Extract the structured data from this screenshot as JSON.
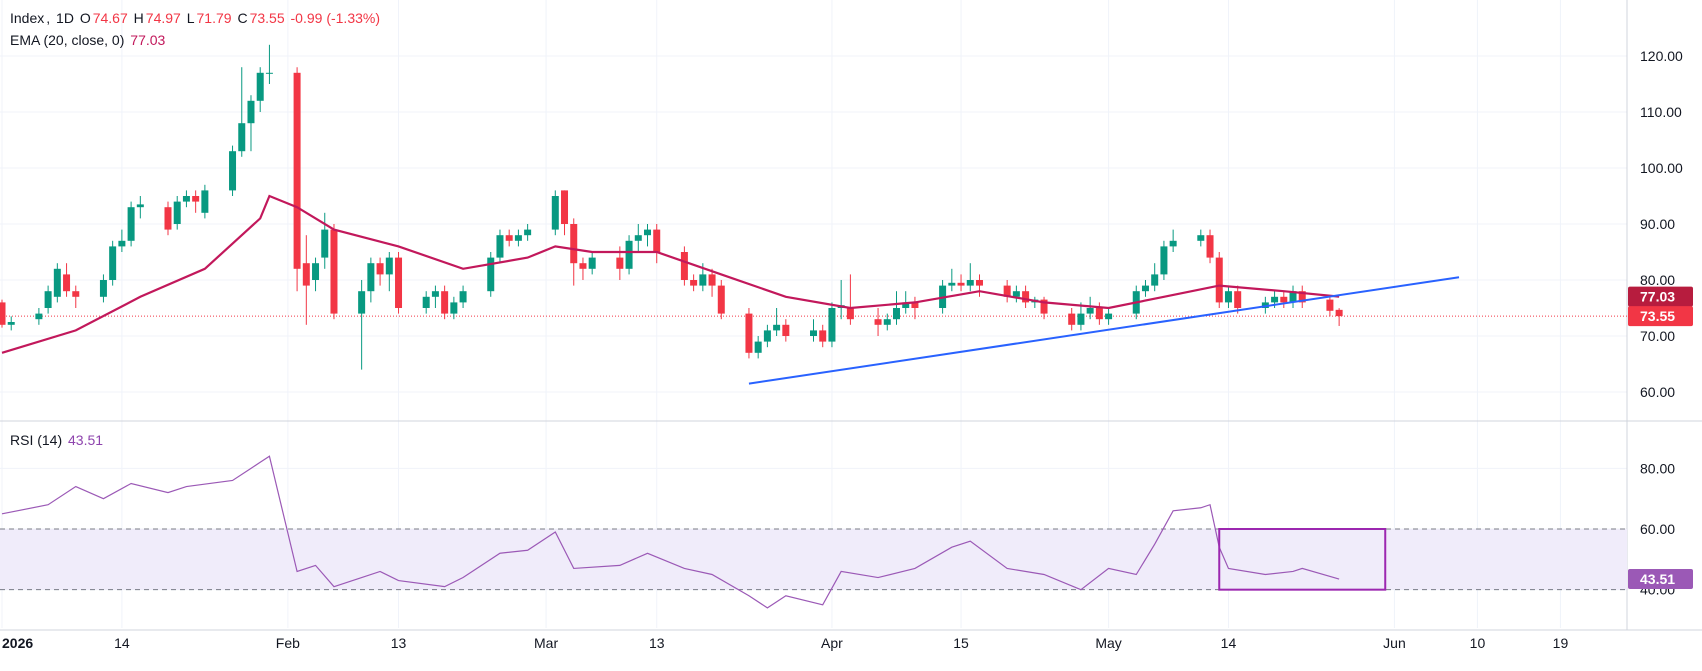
{
  "header": {
    "symbol": "Index",
    "interval": "1D",
    "o_label": "O",
    "o_value": "74.67",
    "h_label": "H",
    "h_value": "74.97",
    "l_label": "L",
    "l_value": "71.79",
    "c_label": "C",
    "c_value": "73.55",
    "change": "-0.99 (-1.33%)"
  },
  "ema_legend": {
    "label": "EMA (20, close, 0)",
    "value": "77.03"
  },
  "rsi_legend": {
    "label": "RSI (14)",
    "value": "43.51"
  },
  "colors": {
    "up": "#089981",
    "down": "#f23645",
    "ema": "#c2185b",
    "rsi": "#9b59b6",
    "trendline": "#2962ff",
    "rsi_band": "#f0ecfa",
    "box": "#9c27b0"
  },
  "chart_data": {
    "type": "candlestick",
    "title": "",
    "price_axis": {
      "ylim": [
        55,
        125
      ],
      "ticks": [
        "60.00",
        "70.00",
        "80.00",
        "90.00",
        "100.00",
        "110.00",
        "120.00"
      ],
      "last_price_label": "73.55",
      "ema_label": "77.03"
    },
    "x_axis": {
      "ticks": [
        {
          "label": "2026",
          "date": "2026-01-01"
        },
        {
          "label": "14",
          "date": "2026-01-14"
        },
        {
          "label": "Feb",
          "date": "2026-02-01"
        },
        {
          "label": "13",
          "date": "2026-02-13"
        },
        {
          "label": "Mar",
          "date": "2026-03-01"
        },
        {
          "label": "13",
          "date": "2026-03-13"
        },
        {
          "label": "Apr",
          "date": "2026-04-01"
        },
        {
          "label": "15",
          "date": "2026-04-15"
        },
        {
          "label": "May",
          "date": "2026-05-01"
        },
        {
          "label": "14",
          "date": "2026-05-14"
        },
        {
          "label": "Jun",
          "date": "2026-06-01"
        },
        {
          "label": "10",
          "date": "2026-06-10"
        },
        {
          "label": "19",
          "date": "2026-06-19"
        }
      ],
      "xlim": [
        "2026-01-01",
        "2026-06-26"
      ]
    },
    "candles": [
      [
        "2026-01-01",
        76,
        72,
        76.5,
        71.5
      ],
      [
        "2026-01-02",
        72,
        72.5,
        73.5,
        71
      ],
      [
        "2026-01-05",
        73,
        74,
        75,
        72
      ],
      [
        "2026-01-06",
        75,
        78,
        79,
        74
      ],
      [
        "2026-01-07",
        77,
        82,
        83,
        76
      ],
      [
        "2026-01-08",
        81,
        78,
        83,
        77
      ],
      [
        "2026-01-09",
        78,
        77,
        79,
        75
      ],
      [
        "2026-01-12",
        77,
        80,
        81,
        76
      ],
      [
        "2026-01-13",
        80,
        86,
        87,
        79
      ],
      [
        "2026-01-14",
        86,
        87,
        89,
        85
      ],
      [
        "2026-01-15",
        87,
        93,
        94,
        86
      ],
      [
        "2026-01-16",
        93,
        93.5,
        95,
        91
      ],
      [
        "2026-01-19",
        93,
        89,
        94,
        88
      ],
      [
        "2026-01-20",
        90,
        94,
        95,
        89
      ],
      [
        "2026-01-21",
        94,
        95,
        96,
        93
      ],
      [
        "2026-01-22",
        95,
        94,
        96,
        92
      ],
      [
        "2026-01-23",
        92,
        96,
        97,
        91
      ],
      [
        "2026-01-26",
        96,
        103,
        104,
        95
      ],
      [
        "2026-01-27",
        103,
        108,
        118,
        102
      ],
      [
        "2026-01-28",
        108,
        112,
        113,
        103
      ],
      [
        "2026-01-29",
        112,
        117,
        118,
        110
      ],
      [
        "2026-01-30",
        117,
        117,
        122,
        115
      ],
      [
        "2026-02-02",
        117,
        82,
        118,
        78
      ],
      [
        "2026-02-03",
        83,
        79,
        88,
        72
      ],
      [
        "2026-02-04",
        80,
        83,
        84,
        78
      ],
      [
        "2026-02-05",
        84,
        89,
        92,
        82
      ],
      [
        "2026-02-06",
        89,
        74,
        90,
        73
      ],
      [
        "2026-02-09",
        74,
        78,
        80,
        64
      ],
      [
        "2026-02-10",
        78,
        83,
        84,
        76
      ],
      [
        "2026-02-11",
        83,
        81,
        84,
        79
      ],
      [
        "2026-02-12",
        81,
        84,
        85,
        78
      ],
      [
        "2026-02-13",
        84,
        75,
        85,
        74
      ],
      [
        "2026-02-16",
        75,
        77,
        78,
        74
      ],
      [
        "2026-02-17",
        77,
        78,
        79,
        75
      ],
      [
        "2026-02-18",
        78,
        74,
        79,
        73
      ],
      [
        "2026-02-19",
        74,
        76,
        77,
        73
      ],
      [
        "2026-02-20",
        76,
        78,
        79,
        75
      ],
      [
        "2026-02-23",
        78,
        84,
        85,
        77
      ],
      [
        "2026-02-24",
        84,
        88,
        89,
        83
      ],
      [
        "2026-02-25",
        88,
        87,
        89,
        86
      ],
      [
        "2026-02-26",
        87,
        88,
        89,
        86
      ],
      [
        "2026-02-27",
        88,
        89,
        90,
        87
      ],
      [
        "2026-03-02",
        89,
        95,
        96,
        88
      ],
      [
        "2026-03-03",
        96,
        90,
        96,
        88
      ],
      [
        "2026-03-04",
        90,
        83,
        91,
        79
      ],
      [
        "2026-03-05",
        83,
        82,
        84,
        80
      ],
      [
        "2026-03-06",
        82,
        84,
        85,
        81
      ],
      [
        "2026-03-09",
        84,
        82,
        86,
        80
      ],
      [
        "2026-03-10",
        82,
        87,
        88,
        81
      ],
      [
        "2026-03-11",
        87,
        88,
        90,
        85
      ],
      [
        "2026-03-12",
        88,
        89,
        90,
        86
      ],
      [
        "2026-03-13",
        89,
        85,
        90,
        83
      ],
      [
        "2026-03-16",
        85,
        80,
        86,
        79
      ],
      [
        "2026-03-17",
        80,
        79,
        81,
        78
      ],
      [
        "2026-03-18",
        79,
        81,
        83,
        78
      ],
      [
        "2026-03-19",
        81,
        79,
        82,
        77
      ],
      [
        "2026-03-20",
        79,
        74,
        80,
        73
      ],
      [
        "2026-03-23",
        74,
        67,
        75,
        66
      ],
      [
        "2026-03-24",
        67,
        69,
        70,
        66
      ],
      [
        "2026-03-25",
        69,
        71,
        72,
        68
      ],
      [
        "2026-03-26",
        71,
        72,
        75,
        70
      ],
      [
        "2026-03-27",
        72,
        70,
        73,
        69
      ],
      [
        "2026-03-30",
        70,
        71,
        73,
        69
      ],
      [
        "2026-03-31",
        71,
        69,
        72,
        68
      ],
      [
        "2026-04-01",
        69,
        75,
        76,
        68
      ],
      [
        "2026-04-02",
        75,
        75.5,
        80,
        73
      ],
      [
        "2026-04-03",
        75,
        73,
        81,
        72
      ],
      [
        "2026-04-06",
        73,
        72,
        75,
        70
      ],
      [
        "2026-04-07",
        72,
        73,
        74,
        71
      ],
      [
        "2026-04-08",
        73,
        75,
        78,
        72
      ],
      [
        "2026-04-09",
        75,
        76,
        78,
        74
      ],
      [
        "2026-04-10",
        76,
        75,
        77,
        73
      ],
      [
        "2026-04-13",
        75,
        79,
        80,
        74
      ],
      [
        "2026-04-14",
        79,
        79.5,
        82,
        78
      ],
      [
        "2026-04-15",
        79.5,
        79,
        81,
        78
      ],
      [
        "2026-04-16",
        79,
        80,
        83,
        78
      ],
      [
        "2026-04-17",
        80,
        79,
        81,
        77
      ],
      [
        "2026-04-20",
        79,
        77,
        80,
        76
      ],
      [
        "2026-04-21",
        77,
        78,
        79,
        76
      ],
      [
        "2026-04-22",
        78,
        76,
        79,
        75
      ],
      [
        "2026-04-23",
        76,
        76.5,
        77,
        75
      ],
      [
        "2026-04-24",
        76.5,
        74,
        77,
        73
      ],
      [
        "2026-04-27",
        74,
        72,
        75,
        71
      ],
      [
        "2026-04-28",
        72,
        74,
        76,
        71
      ],
      [
        "2026-04-29",
        74,
        75,
        77,
        73
      ],
      [
        "2026-04-30",
        75,
        73,
        76,
        72
      ],
      [
        "2026-05-01",
        73,
        74,
        75,
        72
      ],
      [
        "2026-05-04",
        74,
        78,
        79,
        73
      ],
      [
        "2026-05-05",
        78,
        79,
        80,
        77
      ],
      [
        "2026-05-06",
        79,
        81,
        83,
        78
      ],
      [
        "2026-05-07",
        81,
        86,
        87,
        80
      ],
      [
        "2026-05-08",
        86,
        87,
        89,
        85
      ],
      [
        "2026-05-11",
        87,
        88,
        89,
        86
      ],
      [
        "2026-05-12",
        88,
        84,
        89,
        83
      ],
      [
        "2026-05-13",
        84,
        76,
        85,
        75
      ],
      [
        "2026-05-14",
        76,
        78,
        79,
        75
      ],
      [
        "2026-05-15",
        78,
        75,
        79,
        74
      ],
      [
        "2026-05-18",
        75,
        76,
        77,
        74
      ],
      [
        "2026-05-19",
        76,
        77,
        78,
        75
      ],
      [
        "2026-05-20",
        77,
        76,
        78,
        75
      ],
      [
        "2026-05-21",
        76,
        78,
        79,
        75
      ],
      [
        "2026-05-22",
        78,
        76,
        79,
        75
      ],
      [
        "2026-05-25",
        76.5,
        74.5,
        77,
        73.5
      ],
      [
        "2026-05-26",
        74.67,
        73.55,
        74.97,
        71.79
      ]
    ],
    "candle_columns": [
      "date",
      "open",
      "close",
      "high",
      "low"
    ],
    "ema": [
      [
        "2026-01-01",
        67
      ],
      [
        "2026-01-09",
        71
      ],
      [
        "2026-01-16",
        77
      ],
      [
        "2026-01-23",
        82
      ],
      [
        "2026-01-29",
        91
      ],
      [
        "2026-01-30",
        95
      ],
      [
        "2026-02-02",
        93
      ],
      [
        "2026-02-06",
        89
      ],
      [
        "2026-02-13",
        86
      ],
      [
        "2026-02-20",
        82
      ],
      [
        "2026-02-27",
        84
      ],
      [
        "2026-03-02",
        86
      ],
      [
        "2026-03-06",
        85
      ],
      [
        "2026-03-13",
        85
      ],
      [
        "2026-03-20",
        81
      ],
      [
        "2026-03-27",
        77
      ],
      [
        "2026-04-03",
        75
      ],
      [
        "2026-04-10",
        76
      ],
      [
        "2026-04-17",
        78
      ],
      [
        "2026-04-24",
        76
      ],
      [
        "2026-05-01",
        75
      ],
      [
        "2026-05-07",
        77
      ],
      [
        "2026-05-13",
        79
      ],
      [
        "2026-05-20",
        78
      ],
      [
        "2026-05-26",
        77.03
      ]
    ],
    "trendline": [
      [
        "2026-03-23",
        61.5
      ],
      [
        "2026-06-08",
        80.5
      ]
    ],
    "rsi_axis": {
      "ylim": [
        30,
        90
      ],
      "ticks": [
        "40.00",
        "60.00",
        "80.00"
      ],
      "bands": [
        40,
        60
      ],
      "last_label": "43.51"
    },
    "rsi": [
      [
        "2026-01-01",
        65
      ],
      [
        "2026-01-06",
        68
      ],
      [
        "2026-01-09",
        74
      ],
      [
        "2026-01-12",
        70
      ],
      [
        "2026-01-15",
        75
      ],
      [
        "2026-01-19",
        72
      ],
      [
        "2026-01-21",
        74
      ],
      [
        "2026-01-26",
        76
      ],
      [
        "2026-01-28",
        80
      ],
      [
        "2026-01-29",
        82
      ],
      [
        "2026-01-30",
        84
      ],
      [
        "2026-02-02",
        46
      ],
      [
        "2026-02-04",
        48
      ],
      [
        "2026-02-06",
        41
      ],
      [
        "2026-02-09",
        44
      ],
      [
        "2026-02-11",
        46
      ],
      [
        "2026-02-13",
        43
      ],
      [
        "2026-02-18",
        41
      ],
      [
        "2026-02-20",
        44
      ],
      [
        "2026-02-24",
        52
      ],
      [
        "2026-02-27",
        53
      ],
      [
        "2026-03-02",
        59
      ],
      [
        "2026-03-04",
        47
      ],
      [
        "2026-03-09",
        48
      ],
      [
        "2026-03-12",
        52
      ],
      [
        "2026-03-16",
        47
      ],
      [
        "2026-03-19",
        45
      ],
      [
        "2026-03-23",
        38
      ],
      [
        "2026-03-25",
        34
      ],
      [
        "2026-03-27",
        38
      ],
      [
        "2026-03-31",
        35
      ],
      [
        "2026-04-02",
        46
      ],
      [
        "2026-04-06",
        44
      ],
      [
        "2026-04-10",
        47
      ],
      [
        "2026-04-14",
        54
      ],
      [
        "2026-04-16",
        56
      ],
      [
        "2026-04-20",
        47
      ],
      [
        "2026-04-24",
        45
      ],
      [
        "2026-04-28",
        40
      ],
      [
        "2026-05-01",
        47
      ],
      [
        "2026-05-04",
        45
      ],
      [
        "2026-05-06",
        55
      ],
      [
        "2026-05-08",
        66
      ],
      [
        "2026-05-11",
        67
      ],
      [
        "2026-05-12",
        68
      ],
      [
        "2026-05-13",
        54
      ],
      [
        "2026-05-14",
        47
      ],
      [
        "2026-05-18",
        45
      ],
      [
        "2026-05-21",
        46
      ],
      [
        "2026-05-22",
        47
      ],
      [
        "2026-05-26",
        43.51
      ]
    ],
    "highlight_box": {
      "x": [
        "2026-05-13",
        "2026-05-31"
      ],
      "y": [
        40,
        60
      ]
    }
  }
}
